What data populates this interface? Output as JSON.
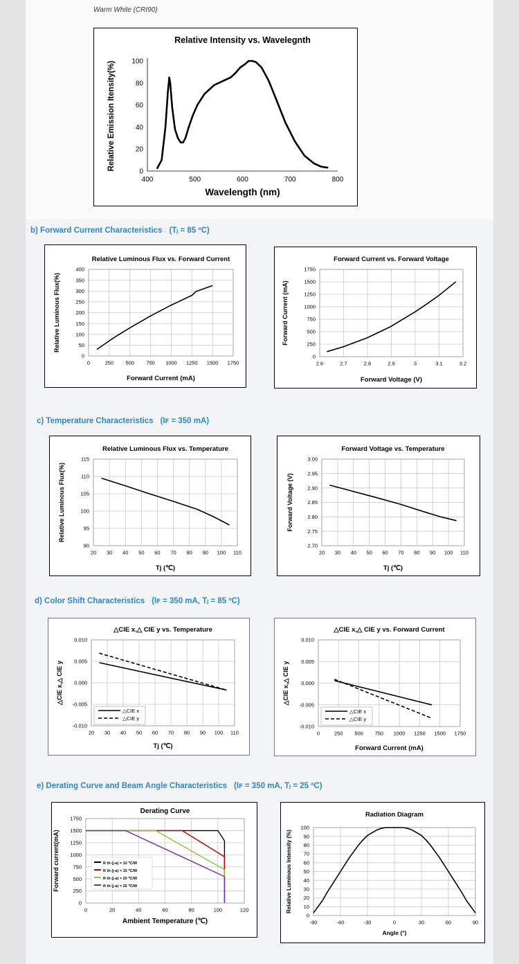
{
  "header": {
    "caption": "Warm White (CRI90)"
  },
  "sections": {
    "b": {
      "label": "b)  Forward Current Characteristics",
      "cond": "(Tⱼ = 85 ºC)"
    },
    "c": {
      "label": "c)  Temperature Characteristics",
      "cond": "(Iꜰ = 350 mA)"
    },
    "d": {
      "label": "d)  Color Shift Characteristics",
      "cond": "(Iꜰ = 350 mA, Tⱼ = 85 ºC)"
    },
    "e": {
      "label": "e)  Derating Curve and Beam Angle Characteristics",
      "cond": "(Iꜰ = 350 mA, Tⱼ = 25 ºC)"
    }
  },
  "colors": {
    "heading": "#2f86c8",
    "grid": "#c8c8c8",
    "line": "#000000",
    "rth10": "#000000",
    "rth15": "#c00000",
    "rth20": "#8cc63f",
    "rth25": "#7030a0"
  },
  "chart_data": [
    {
      "id": "spectrum",
      "type": "line",
      "title": "Relative Intensity vs. Wavelegnth",
      "xlabel": "Wavelength (nm)",
      "ylabel": "Relative Emission Itensity(%)",
      "xlim": [
        400,
        800
      ],
      "ylim": [
        0,
        100
      ],
      "xticks": [
        "400",
        "500",
        "600",
        "700",
        "800"
      ],
      "yticks": [
        "0",
        "20",
        "40",
        "60",
        "80",
        "100"
      ],
      "grid": false,
      "series": [
        {
          "x": [
            420,
            430,
            438,
            443,
            446,
            448,
            452,
            458,
            464,
            470,
            475,
            480,
            487,
            495,
            505,
            520,
            540,
            560,
            575,
            585,
            595,
            605,
            613,
            620,
            628,
            640,
            655,
            670,
            690,
            710,
            730,
            750,
            765,
            780
          ],
          "y": [
            2,
            10,
            40,
            72,
            85,
            80,
            58,
            38,
            30,
            26,
            26,
            30,
            40,
            50,
            60,
            70,
            78,
            82,
            85,
            89,
            94,
            97,
            100,
            100,
            99,
            94,
            82,
            66,
            44,
            27,
            14,
            7,
            4,
            3
          ]
        }
      ]
    },
    {
      "id": "flux-current",
      "type": "line",
      "title": "Relative Luminous Flux vs. Forward Current",
      "xlabel": "Forward Current (mA)",
      "ylabel": "Relative Luminous Flux(%)",
      "xlim": [
        0,
        1750
      ],
      "ylim": [
        0,
        400
      ],
      "xticks": [
        "0",
        "250",
        "500",
        "750",
        "1000",
        "1250",
        "1500",
        "1750"
      ],
      "yticks": [
        "0",
        "50",
        "100",
        "150",
        "200",
        "250",
        "300",
        "350",
        "400"
      ],
      "grid": true,
      "series": [
        {
          "x": [
            100,
            250,
            350,
            500,
            750,
            1000,
            1250,
            1300,
            1500
          ],
          "y": [
            30,
            70,
            95,
            130,
            185,
            235,
            280,
            298,
            325
          ]
        }
      ]
    },
    {
      "id": "current-voltage",
      "type": "line",
      "title": "Forward Current vs. Forward Voltage",
      "xlabel": "Forward Voltage (V)",
      "ylabel": "Forward Current (mA)",
      "xlim": [
        2.6,
        3.2
      ],
      "ylim": [
        0,
        1750
      ],
      "xticks": [
        "2.6",
        "2.7",
        "2.8",
        "2.9",
        "3",
        "3.1",
        "3.2"
      ],
      "yticks": [
        "0",
        "250",
        "500",
        "750",
        "1000",
        "1250",
        "1500",
        "1750"
      ],
      "grid": true,
      "series": [
        {
          "x": [
            2.63,
            2.7,
            2.8,
            2.9,
            3.0,
            3.05,
            3.1,
            3.17
          ],
          "y": [
            100,
            200,
            380,
            610,
            900,
            1060,
            1230,
            1500
          ]
        }
      ]
    },
    {
      "id": "flux-temp",
      "type": "line",
      "title": "Relative Luminous Flux vs. Temperature",
      "xlabel": "Tj (℃)",
      "ylabel": "Relative Luminous Flux(%)",
      "xlim": [
        20,
        110
      ],
      "ylim": [
        90,
        115
      ],
      "xticks": [
        "20",
        "30",
        "40",
        "50",
        "60",
        "70",
        "80",
        "90",
        "100",
        "110"
      ],
      "yticks": [
        "90",
        "95",
        "100",
        "105",
        "110",
        "115"
      ],
      "grid": true,
      "series": [
        {
          "x": [
            25,
            40,
            55,
            70,
            85,
            95,
            105
          ],
          "y": [
            109.5,
            107.3,
            105,
            102.8,
            100.5,
            98.4,
            96
          ]
        }
      ]
    },
    {
      "id": "voltage-temp",
      "type": "line",
      "title": "Forward Voltage vs. Temperature",
      "xlabel": "Tj (℃)",
      "ylabel": "Forward Voltage (V)",
      "xlim": [
        20,
        110
      ],
      "ylim": [
        2.7,
        3.0
      ],
      "xticks": [
        "20",
        "30",
        "40",
        "50",
        "60",
        "70",
        "80",
        "90",
        "100",
        "110"
      ],
      "yticks": [
        "2.70",
        "2.75",
        "2.80",
        "2.85",
        "2.90",
        "2.95",
        "3.00"
      ],
      "grid": true,
      "series": [
        {
          "x": [
            25,
            40,
            55,
            70,
            85,
            95,
            105
          ],
          "y": [
            2.91,
            2.888,
            2.866,
            2.843,
            2.817,
            2.8,
            2.787
          ]
        }
      ]
    },
    {
      "id": "cie-temp",
      "type": "line",
      "title": "△CIE x,△ CIE y vs. Temperature",
      "xlabel": "Tj (℃)",
      "ylabel": "△CIE x,△ CIE y",
      "xlim": [
        20,
        110
      ],
      "ylim": [
        -0.01,
        0.01
      ],
      "xticks": [
        "20",
        "30",
        "40",
        "50",
        "60",
        "70",
        "80",
        "90",
        "100",
        "110"
      ],
      "yticks": [
        "-0.010",
        "-0.005",
        "0.000",
        "0.005",
        "0.010"
      ],
      "grid": true,
      "legend": "bottom-left",
      "series": [
        {
          "name": "△CIE x",
          "dash": false,
          "x": [
            25,
            105
          ],
          "y": [
            0.0047,
            -0.0017
          ]
        },
        {
          "name": "△CIE y",
          "dash": true,
          "x": [
            25,
            105
          ],
          "y": [
            0.0069,
            -0.0017
          ]
        }
      ]
    },
    {
      "id": "cie-current",
      "type": "line",
      "title": "△CIE x,△ CIE y vs. Forward Current",
      "xlabel": "Forward Current (mA)",
      "ylabel": "△CIE x,△ CIE y",
      "xlim": [
        0,
        1750
      ],
      "ylim": [
        -0.01,
        0.01
      ],
      "xticks": [
        "0",
        "250",
        "500",
        "750",
        "1000",
        "1250",
        "1500",
        "1750"
      ],
      "yticks": [
        "-0.010",
        "-0.005",
        "0.000",
        "0.005",
        "0.010"
      ],
      "grid": true,
      "legend": "bottom-left",
      "series": [
        {
          "name": "△CIE x",
          "dash": false,
          "x": [
            200,
            1400
          ],
          "y": [
            0.0006,
            -0.005
          ]
        },
        {
          "name": "△CIE y",
          "dash": true,
          "x": [
            200,
            1400
          ],
          "y": [
            0.0009,
            -0.0081
          ]
        }
      ]
    },
    {
      "id": "derating",
      "type": "line",
      "title": "Derating Curve",
      "xlabel": "Ambient Temperature (℃)",
      "ylabel": "Forward current(mA)",
      "xlim": [
        0,
        120
      ],
      "ylim": [
        0,
        1750
      ],
      "xticks": [
        "0",
        "20",
        "40",
        "60",
        "80",
        "100",
        "120"
      ],
      "yticks": [
        "0",
        "250",
        "500",
        "750",
        "1000",
        "1250",
        "1500",
        "1750"
      ],
      "grid": true,
      "legend": "left",
      "series": [
        {
          "name": "R th (j-a) = 10 ℃/W",
          "color": "#000000",
          "x": [
            0,
            80,
            100,
            105,
            105
          ],
          "y": [
            1500,
            1500,
            1500,
            1290,
            0
          ]
        },
        {
          "name": "R th (j-a) = 15 ℃/W",
          "color": "#c00000",
          "x": [
            0,
            73,
            105,
            105
          ],
          "y": [
            1500,
            1500,
            960,
            0
          ]
        },
        {
          "name": "R th (j-a) = 20 ℃/W",
          "color": "#8cc63f",
          "x": [
            0,
            53,
            105,
            105
          ],
          "y": [
            1500,
            1500,
            690,
            0
          ]
        },
        {
          "name": "R th (j-a) = 25 ℃/W",
          "color": "#7030a0",
          "x": [
            0,
            30,
            105,
            105
          ],
          "y": [
            1500,
            1500,
            550,
            0
          ]
        }
      ]
    },
    {
      "id": "radiation",
      "type": "line",
      "title": "Radiation Diagram",
      "xlabel": "Angle (°)",
      "ylabel": "Relative Luminous Intensity (%)",
      "xlim": [
        -90,
        90
      ],
      "ylim": [
        0,
        100
      ],
      "xticks": [
        "-90",
        "-60",
        "-30",
        "0",
        "30",
        "60",
        "90"
      ],
      "yticks": [
        "0",
        "10",
        "20",
        "30",
        "40",
        "50",
        "60",
        "70",
        "80",
        "90",
        "100"
      ],
      "grid": true,
      "series": [
        {
          "x": [
            -90,
            -85,
            -80,
            -75,
            -70,
            -65,
            -60,
            -55,
            -50,
            -45,
            -40,
            -35,
            -30,
            -25,
            -20,
            -15,
            -10,
            -5,
            0,
            5,
            10,
            15,
            20,
            25,
            30,
            35,
            40,
            45,
            50,
            55,
            60,
            65,
            70,
            75,
            80,
            85,
            90
          ],
          "y": [
            3,
            10,
            17,
            26,
            34,
            42,
            50,
            58,
            66,
            73,
            80,
            86,
            91,
            94,
            97,
            99,
            100,
            100,
            100,
            100,
            100,
            99,
            97,
            94,
            91,
            86,
            80,
            73,
            66,
            58,
            50,
            42,
            34,
            26,
            17,
            10,
            3
          ]
        }
      ]
    }
  ]
}
